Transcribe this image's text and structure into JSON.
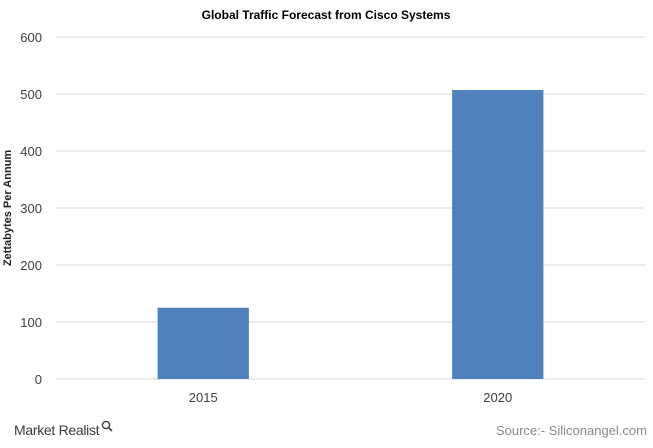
{
  "chart_data": {
    "type": "bar",
    "title": "Global Traffic Forecast from Cisco Systems",
    "ylabel": "Zettabytes Per Annum",
    "xlabel": "",
    "categories": [
      "2015",
      "2020"
    ],
    "values": [
      125,
      507
    ],
    "ylim": [
      0,
      600
    ],
    "yticks": [
      0,
      100,
      200,
      300,
      400,
      500,
      600
    ],
    "grid": true,
    "bar_color": "#4f81bd",
    "gridline_color": "#d9d9d9"
  },
  "footer": {
    "brand": "Market Realist",
    "source": "Source:- Siliconangel.com"
  }
}
